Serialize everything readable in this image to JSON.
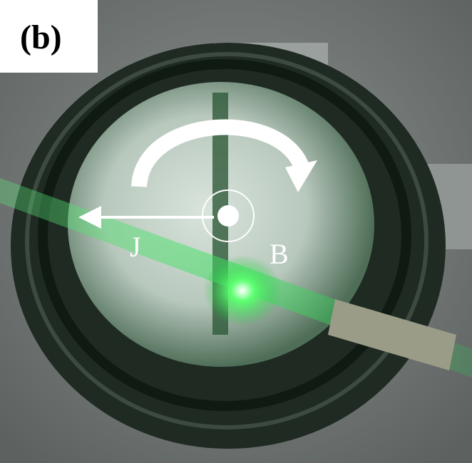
{
  "panel_label": "(b)",
  "annotations": {
    "current_label": "J",
    "field_label": "B"
  }
}
